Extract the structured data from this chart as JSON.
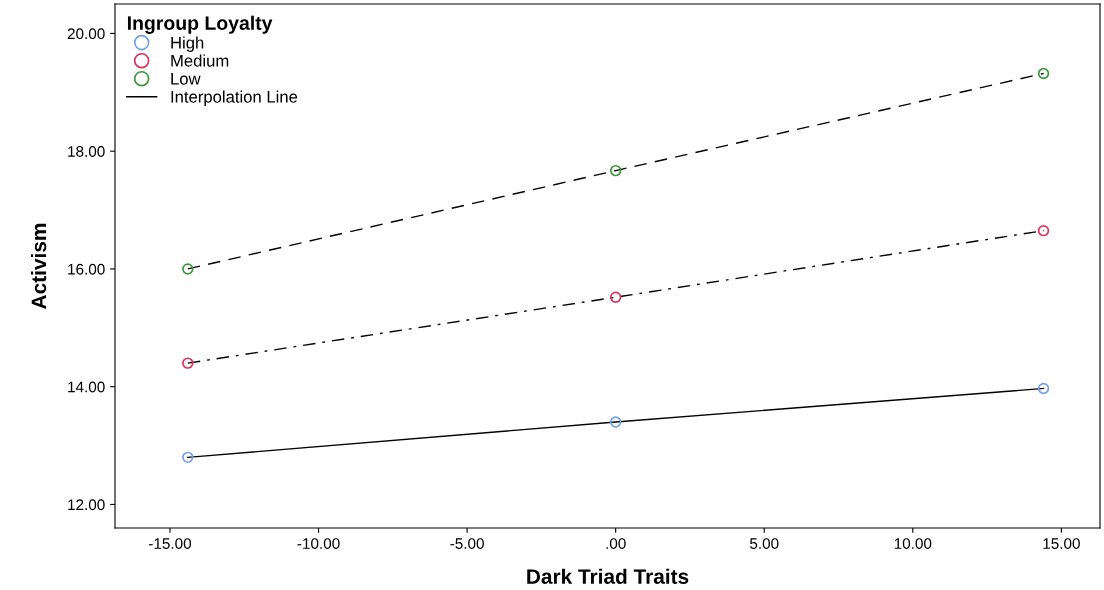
{
  "chart_data": {
    "type": "line",
    "xlabel": "Dark Triad Traits",
    "ylabel": "Activism",
    "legend_title": "Ingroup Loyalty",
    "x": [
      -14.4,
      0,
      14.4
    ],
    "series": [
      {
        "name": "High",
        "color": "#6fa0e8",
        "line_style": "solid",
        "values": [
          12.8,
          13.4,
          13.97
        ]
      },
      {
        "name": "Medium",
        "color": "#e0305a",
        "line_style": "dashdot",
        "values": [
          14.4,
          15.52,
          16.65
        ]
      },
      {
        "name": "Low",
        "color": "#3a9a3a",
        "line_style": "dashed",
        "values": [
          16.0,
          17.67,
          19.32
        ]
      }
    ],
    "annotations": [
      "Interpolation Line"
    ],
    "marker": "circle",
    "legend": "top left",
    "grid": false,
    "xlim": [
      -16.85,
      16.3
    ],
    "ylim": [
      11.6,
      20.5
    ],
    "xticks": [
      {
        "value": -15,
        "label": "-15.00"
      },
      {
        "value": -10,
        "label": "-10.00"
      },
      {
        "value": -5,
        "label": "-5.00"
      },
      {
        "value": 0,
        "label": ".00"
      },
      {
        "value": 5,
        "label": "5.00"
      },
      {
        "value": 10,
        "label": "10.00"
      },
      {
        "value": 15,
        "label": "15.00"
      }
    ],
    "yticks": [
      {
        "value": 12,
        "label": "12.00"
      },
      {
        "value": 14,
        "label": "14.00"
      },
      {
        "value": 16,
        "label": "16.00"
      },
      {
        "value": 18,
        "label": "18.00"
      },
      {
        "value": 20,
        "label": "20.00"
      }
    ]
  }
}
